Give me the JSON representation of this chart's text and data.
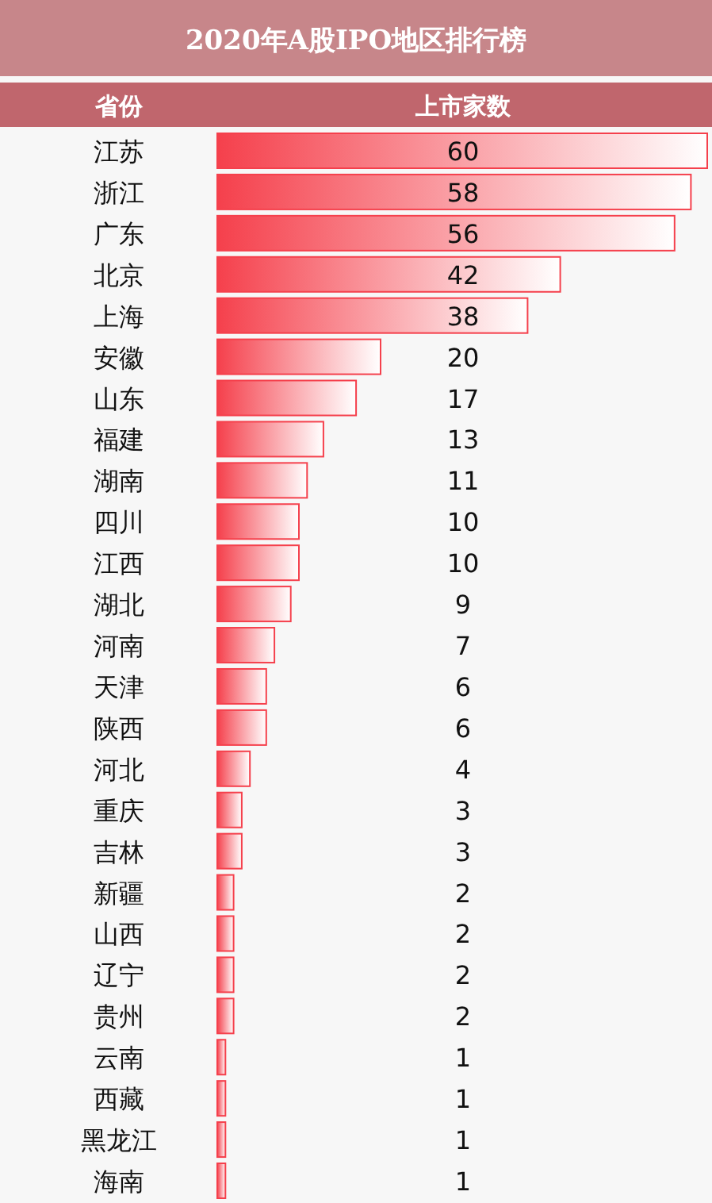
{
  "chart_data": {
    "type": "bar",
    "orientation": "horizontal",
    "title": "2020年A股IPO地区排行榜",
    "ylabel": "省份",
    "xlabel": "上市家数",
    "categories": [
      "江苏",
      "浙江",
      "广东",
      "北京",
      "上海",
      "安徽",
      "山东",
      "福建",
      "湖南",
      "四川",
      "江西",
      "湖北",
      "河南",
      "天津",
      "陕西",
      "河北",
      "重庆",
      "吉林",
      "新疆",
      "山西",
      "辽宁",
      "贵州",
      "云南",
      "西藏",
      "黑龙江",
      "海南"
    ],
    "values": [
      60,
      58,
      56,
      42,
      38,
      20,
      17,
      13,
      11,
      10,
      10,
      9,
      7,
      6,
      6,
      4,
      3,
      3,
      2,
      2,
      2,
      2,
      1,
      1,
      1,
      1
    ],
    "color": "#f5404c",
    "data_labels": true
  }
}
